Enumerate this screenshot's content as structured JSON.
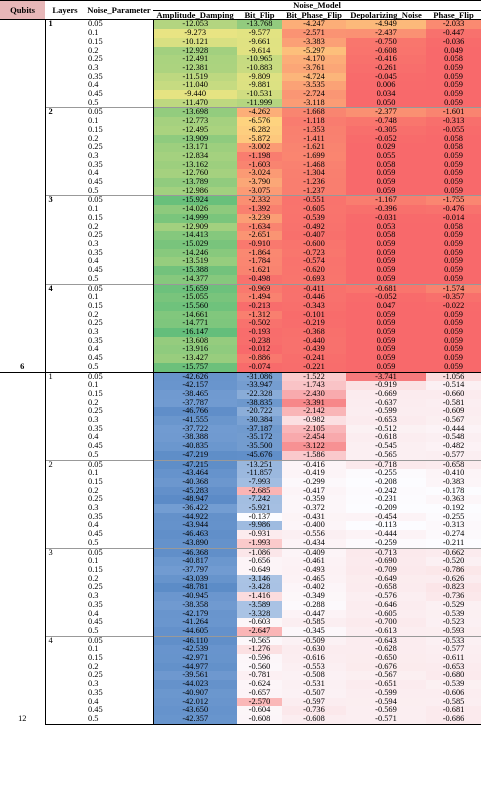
{
  "header": {
    "qubits": "Qubits",
    "layers": "Layers",
    "noise_parameter": "Noise_Parameter",
    "noise_model": "Noise_Model",
    "columns": [
      "Amplitude_Damping",
      "Bit_Flip",
      "Bit_Phase_Flip",
      "Depolarizing_Noise",
      "Phase_Flip"
    ]
  },
  "groups": [
    {
      "qubits": "6",
      "bold_layers": true,
      "layers": [
        {
          "layer": "1",
          "rows": [
            [
              "0.05",
              "-12.053",
              "-13.768",
              "-4.247",
              "-4.949",
              "-2.033"
            ],
            [
              "0.1",
              "-9.273",
              "-9.577",
              "-2.571",
              "-2.437",
              "-0.447"
            ],
            [
              "0.15",
              "-10.121",
              "-9.661",
              "-3.383",
              "-0.750",
              "-0.036"
            ],
            [
              "0.2",
              "-12.928",
              "-9.614",
              "-5.297",
              "-0.608",
              "0.049"
            ],
            [
              "0.25",
              "-12.491",
              "-10.965",
              "-4.170",
              "-0.416",
              "0.058"
            ],
            [
              "0.3",
              "-12.381",
              "-10.883",
              "-3.761",
              "-0.261",
              "0.059"
            ],
            [
              "0.35",
              "-11.519",
              "-9.809",
              "-4.724",
              "-0.045",
              "0.059"
            ],
            [
              "0.4",
              "-11.040",
              "-9.881",
              "-3.535",
              "0.006",
              "0.059"
            ],
            [
              "0.45",
              "-9.440",
              "-10.531",
              "-2.724",
              "0.034",
              "0.059"
            ],
            [
              "0.5",
              "-11.470",
              "-11.999",
              "-3.118",
              "0.050",
              "0.059"
            ]
          ]
        },
        {
          "layer": "2",
          "rows": [
            [
              "0.05",
              "-13.698",
              "-4.262",
              "-1.668",
              "-2.377",
              "-1.601"
            ],
            [
              "0.1",
              "-12.773",
              "-6.576",
              "-1.118",
              "-0.748",
              "-0.313"
            ],
            [
              "0.15",
              "-12.495",
              "-6.282",
              "-1.353",
              "-0.305",
              "-0.055"
            ],
            [
              "0.2",
              "-13.909",
              "-5.872",
              "-1.411",
              "-0.052",
              "0.058"
            ],
            [
              "0.25",
              "-13.171",
              "-3.002",
              "-1.621",
              "0.029",
              "0.058"
            ],
            [
              "0.3",
              "-12.834",
              "-1.198",
              "-1.699",
              "0.055",
              "0.059"
            ],
            [
              "0.35",
              "-13.162",
              "-1.603",
              "-1.468",
              "0.058",
              "0.059"
            ],
            [
              "0.4",
              "-12.760",
              "-3.024",
              "-1.304",
              "0.059",
              "0.059"
            ],
            [
              "0.45",
              "-13.789",
              "-3.790",
              "-1.236",
              "0.059",
              "0.059"
            ],
            [
              "0.5",
              "-12.986",
              "-3.075",
              "-1.237",
              "0.059",
              "0.059"
            ]
          ]
        },
        {
          "layer": "3",
          "rows": [
            [
              "0.05",
              "-15.924",
              "-2.332",
              "-0.551",
              "-1.167",
              "-1.755"
            ],
            [
              "0.1",
              "-14.026",
              "-1.392",
              "-0.605",
              "-0.396",
              "-0.476"
            ],
            [
              "0.15",
              "-14.999",
              "-3.239",
              "-0.539",
              "-0.031",
              "-0.014"
            ],
            [
              "0.2",
              "-12.909",
              "-1.634",
              "-0.492",
              "0.053",
              "0.058"
            ],
            [
              "0.25",
              "-14.413",
              "-2.651",
              "-0.407",
              "0.058",
              "0.059"
            ],
            [
              "0.3",
              "-15.029",
              "-0.910",
              "-0.600",
              "0.059",
              "0.059"
            ],
            [
              "0.35",
              "-14.246",
              "-1.864",
              "-0.723",
              "0.059",
              "0.059"
            ],
            [
              "0.4",
              "-13.519",
              "-1.784",
              "-0.574",
              "0.059",
              "0.059"
            ],
            [
              "0.45",
              "-15.388",
              "-1.621",
              "-0.620",
              "0.059",
              "0.059"
            ],
            [
              "0.5",
              "-14.377",
              "-0.498",
              "-0.693",
              "0.059",
              "0.059"
            ]
          ]
        },
        {
          "layer": "4",
          "rows": [
            [
              "0.05",
              "-15.659",
              "-0.969",
              "-0.411",
              "-0.681",
              "-1.574"
            ],
            [
              "0.1",
              "-15.055",
              "-1.494",
              "-0.446",
              "-0.052",
              "-0.357"
            ],
            [
              "0.15",
              "-15.560",
              "-0.213",
              "-0.343",
              "0.047",
              "-0.022"
            ],
            [
              "0.2",
              "-14.661",
              "-1.312",
              "-0.101",
              "0.059",
              "0.059"
            ],
            [
              "0.25",
              "-14.771",
              "-0.502",
              "-0.219",
              "0.059",
              "0.059"
            ],
            [
              "0.3",
              "-16.147",
              "-0.193",
              "-0.368",
              "0.059",
              "0.059"
            ],
            [
              "0.35",
              "-13.608",
              "-0.238",
              "-0.440",
              "0.059",
              "0.059"
            ],
            [
              "0.4",
              "-13.916",
              "-0.012",
              "-0.439",
              "0.059",
              "0.059"
            ],
            [
              "0.45",
              "-13.427",
              "-0.886",
              "-0.241",
              "0.059",
              "0.059"
            ],
            [
              "0.5",
              "-15.757",
              "-0.074",
              "-0.221",
              "0.059",
              "0.059"
            ]
          ]
        }
      ]
    },
    {
      "qubits": "12",
      "bold_layers": false,
      "layers": [
        {
          "layer": "1",
          "rows": [
            [
              "0.05",
              "-42.626",
              "-31.086",
              "-1.522",
              "-3.741",
              "-1.056"
            ],
            [
              "0.1",
              "-42.157",
              "-33.947",
              "-1.743",
              "-0.919",
              "-0.514"
            ],
            [
              "0.15",
              "-38.465",
              "-22.328",
              "-2.430",
              "-0.669",
              "-0.660"
            ],
            [
              "0.2",
              "-37.787",
              "-38.835",
              "-3.391",
              "-0.637",
              "-0.581"
            ],
            [
              "0.25",
              "-46.766",
              "-20.722",
              "-2.142",
              "-0.599",
              "-0.609"
            ],
            [
              "0.3",
              "-41.555",
              "-30.384",
              "-0.982",
              "-0.653",
              "-0.567"
            ],
            [
              "0.35",
              "-37.722",
              "-37.187",
              "-2.105",
              "-0.512",
              "-0.444"
            ],
            [
              "0.4",
              "-38.388",
              "-35.172",
              "-2.454",
              "-0.618",
              "-0.548"
            ],
            [
              "0.45",
              "-40.835",
              "-35.500",
              "-3.122",
              "-0.545",
              "-0.482"
            ],
            [
              "0.5",
              "-47.219",
              "-45.676",
              "-1.586",
              "-0.565",
              "-0.577"
            ]
          ]
        },
        {
          "layer": "2",
          "rows": [
            [
              "0.05",
              "-47.215",
              "-13.251",
              "-0.416",
              "-0.718",
              "-0.658"
            ],
            [
              "0.1",
              "-43.464",
              "-11.857",
              "-0.419",
              "-0.255",
              "-0.410"
            ],
            [
              "0.15",
              "-40.368",
              "-7.993",
              "-0.299",
              "-0.208",
              "-0.383"
            ],
            [
              "0.2",
              "-45.283",
              "-2.685",
              "-0.417",
              "-0.242",
              "-0.178"
            ],
            [
              "0.25",
              "-48.947",
              "-7.242",
              "-0.359",
              "-0.231",
              "-0.363"
            ],
            [
              "0.3",
              "-36.422",
              "-5.921",
              "-0.372",
              "-0.209",
              "-0.192"
            ],
            [
              "0.35",
              "-44.922",
              "-0.137",
              "-0.431",
              "-0.454",
              "-0.255"
            ],
            [
              "0.4",
              "-43.944",
              "-9.986",
              "-0.400",
              "-0.113",
              "-0.313"
            ],
            [
              "0.45",
              "-46.463",
              "-0.931",
              "-0.556",
              "-0.444",
              "-0.274"
            ],
            [
              "0.5",
              "-43.890",
              "-1.993",
              "-0.434",
              "-0.259",
              "-0.211"
            ]
          ]
        },
        {
          "layer": "3",
          "rows": [
            [
              "0.05",
              "-46.368",
              "-1.086",
              "-0.409",
              "-0.713",
              "-0.662"
            ],
            [
              "0.1",
              "-40.817",
              "-0.656",
              "-0.461",
              "-0.690",
              "-0.520"
            ],
            [
              "0.15",
              "-37.797",
              "-0.649",
              "-0.493",
              "-0.709",
              "-0.786"
            ],
            [
              "0.2",
              "-43.039",
              "-3.146",
              "-0.465",
              "-0.649",
              "-0.626"
            ],
            [
              "0.25",
              "-48.781",
              "-3.428",
              "-0.402",
              "-0.658",
              "-0.823"
            ],
            [
              "0.3",
              "-40.945",
              "-1.416",
              "-0.349",
              "-0.576",
              "-0.736"
            ],
            [
              "0.35",
              "-38.358",
              "-3.589",
              "-0.288",
              "-0.646",
              "-0.529"
            ],
            [
              "0.4",
              "-42.179",
              "-3.328",
              "-0.447",
              "-0.605",
              "-0.539"
            ],
            [
              "0.45",
              "-41.264",
              "-0.603",
              "-0.585",
              "-0.700",
              "-0.523"
            ],
            [
              "0.5",
              "-44.605",
              "-2.647",
              "-0.345",
              "-0.613",
              "-0.593"
            ]
          ]
        },
        {
          "layer": "4",
          "rows": [
            [
              "0.05",
              "-46.110",
              "-0.565",
              "-0.509",
              "-0.643",
              "-0.533"
            ],
            [
              "0.1",
              "-42.539",
              "-1.276",
              "-0.630",
              "-0.628",
              "-0.577"
            ],
            [
              "0.15",
              "-42.971",
              "-0.596",
              "-0.616",
              "-0.650",
              "-0.611"
            ],
            [
              "0.2",
              "-44.977",
              "-0.560",
              "-0.553",
              "-0.676",
              "-0.653"
            ],
            [
              "0.25",
              "-39.561",
              "-0.781",
              "-0.508",
              "-0.567",
              "-0.680"
            ],
            [
              "0.3",
              "-44.023",
              "-0.624",
              "-0.531",
              "-0.651",
              "-0.539"
            ],
            [
              "0.35",
              "-40.907",
              "-0.657",
              "-0.507",
              "-0.599",
              "-0.606"
            ],
            [
              "0.4",
              "-42.012",
              "-2.570",
              "-0.597",
              "-0.594",
              "-0.585"
            ],
            [
              "0.45",
              "-43.650",
              "-0.604",
              "-0.736",
              "-0.569",
              "-0.681"
            ],
            [
              "0.5",
              "-42.357",
              "-0.608",
              "-0.608",
              "-0.571",
              "-0.686"
            ]
          ]
        }
      ]
    }
  ]
}
